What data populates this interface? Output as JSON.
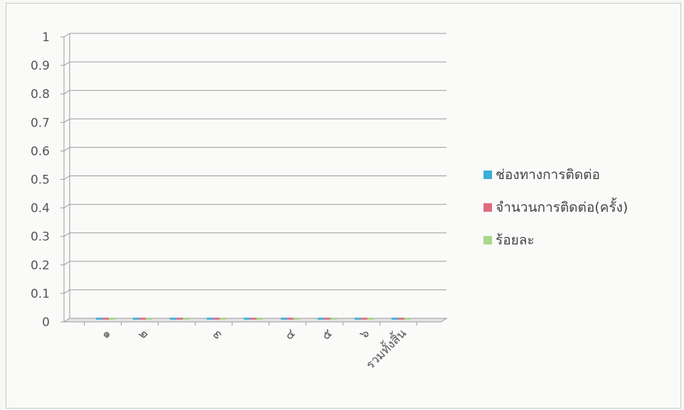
{
  "chart_data": {
    "type": "bar",
    "categories": [
      "๑",
      "๒",
      "",
      "๓",
      "",
      "๔",
      "๕",
      "๖",
      "รวมทั้งสิ้น"
    ],
    "series": [
      {
        "name": "ช่องทางการติดต่อ",
        "color": "#3aaed8",
        "values": [
          0,
          0,
          0,
          0,
          0,
          0,
          0,
          0,
          0
        ]
      },
      {
        "name": "จำนวนการติดต่อ(ครั้ง)",
        "color": "#e06a82",
        "values": [
          0,
          0,
          0,
          0,
          0,
          0,
          0,
          0,
          0
        ]
      },
      {
        "name": "ร้อยละ",
        "color": "#a8d88a",
        "values": [
          0,
          0,
          0,
          0,
          0,
          0,
          0,
          0,
          0
        ]
      }
    ],
    "yticks": [
      "0",
      "0.1",
      "0.2",
      "0.3",
      "0.4",
      "0.5",
      "0.6",
      "0.7",
      "0.8",
      "0.9",
      "1"
    ],
    "ylim": [
      0,
      1
    ],
    "grid": true,
    "legend_position": "right",
    "style_3d": true
  }
}
